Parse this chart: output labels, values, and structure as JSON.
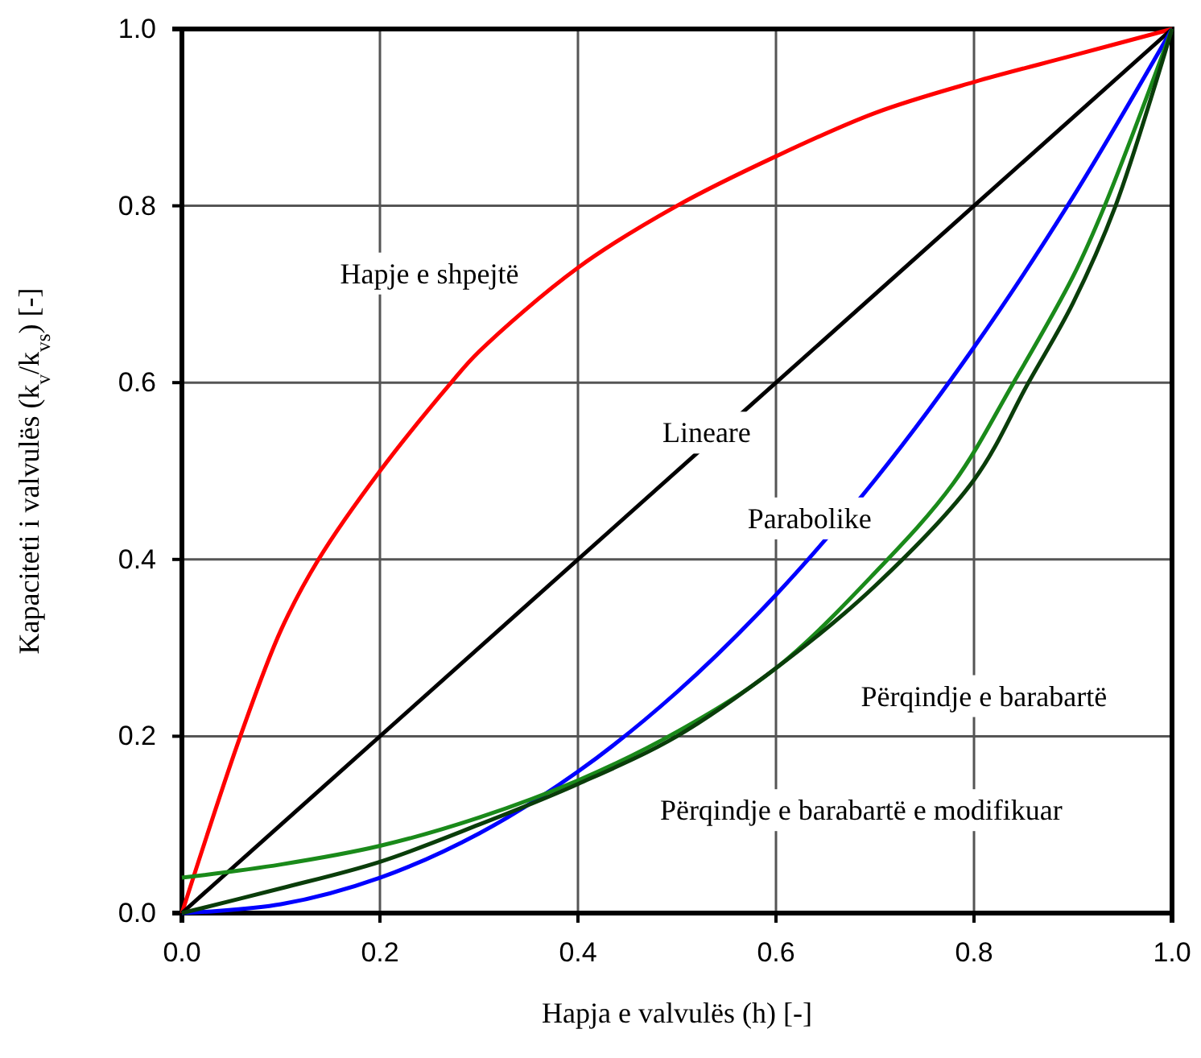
{
  "chart_data": {
    "type": "line",
    "xlabel": "Hapja e valvulës (h) [-]",
    "ylabel": "Kapaciteti i valvulës (k$_{v}$/k$_{vs}$) [-]",
    "xlim": [
      0,
      1
    ],
    "ylim": [
      0,
      1
    ],
    "xticks": [
      {
        "value": 0,
        "label": "0.0"
      },
      {
        "value": 0.2,
        "label": "0.2"
      },
      {
        "value": 0.4,
        "label": "0.4"
      },
      {
        "value": 0.6,
        "label": "0.6"
      },
      {
        "value": 0.8,
        "label": "0.8"
      },
      {
        "value": 1,
        "label": "1.0"
      }
    ],
    "yticks": [
      {
        "value": 0,
        "label": "0.0"
      },
      {
        "value": 0.2,
        "label": "0.2"
      },
      {
        "value": 0.4,
        "label": "0.4"
      },
      {
        "value": 0.6,
        "label": "0.6"
      },
      {
        "value": 0.8,
        "label": "0.8"
      },
      {
        "value": 1,
        "label": "1.0"
      }
    ],
    "grid": true,
    "legend": false,
    "marker": "none",
    "line_style": "solid",
    "series": [
      {
        "name": "Hapje e shpejtë",
        "color": "#ff0000",
        "x": [
          0,
          0.059,
          0.1,
          0.138,
          0.2,
          0.272,
          0.3,
          0.4,
          0.5,
          0.6,
          0.7,
          0.8,
          0.9,
          1
        ],
        "values": [
          0,
          0.2,
          0.32,
          0.4,
          0.5,
          0.6,
          0.635,
          0.73,
          0.8,
          0.856,
          0.905,
          0.94,
          0.97,
          1
        ]
      },
      {
        "name": "Lineare",
        "color": "#000000",
        "x": [
          0,
          1
        ],
        "values": [
          0,
          1
        ]
      },
      {
        "name": "Parabolike",
        "color": "#0000ff",
        "x": [
          0,
          0.1,
          0.2,
          0.3,
          0.4,
          0.5,
          0.6,
          0.7,
          0.8,
          0.9,
          1
        ],
        "values": [
          0,
          0.01,
          0.04,
          0.09,
          0.16,
          0.25,
          0.36,
          0.49,
          0.64,
          0.81,
          1
        ]
      },
      {
        "name": "Përqindje e barabartë",
        "color": "#1a8a1a",
        "x": [
          0,
          0.1,
          0.2,
          0.3,
          0.4,
          0.5,
          0.6,
          0.7,
          0.779,
          0.84,
          0.9,
          0.932,
          1
        ],
        "values": [
          0.04,
          0.055,
          0.076,
          0.108,
          0.15,
          0.205,
          0.277,
          0.385,
          0.486,
          0.6,
          0.72,
          0.8,
          1
        ]
      },
      {
        "name": "Përqindje e barabartë e modifikuar",
        "color": "#0a3d0a",
        "x": [
          0,
          0.1,
          0.2,
          0.3,
          0.4,
          0.5,
          0.6,
          0.7,
          0.8,
          0.855,
          0.9,
          0.943,
          1
        ],
        "values": [
          0,
          0.028,
          0.058,
          0.1,
          0.146,
          0.2,
          0.277,
          0.37,
          0.49,
          0.6,
          0.69,
          0.8,
          1
        ]
      }
    ]
  }
}
